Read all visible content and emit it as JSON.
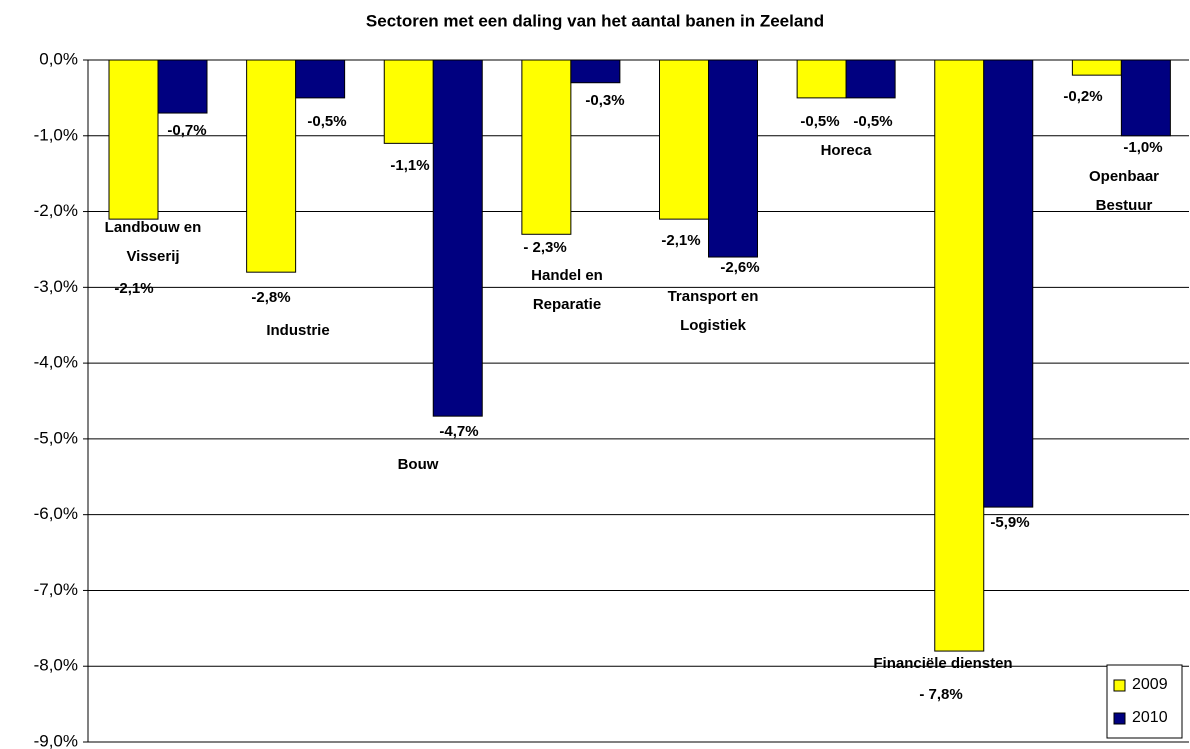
{
  "chart_data": {
    "type": "bar",
    "title": "Sectoren met een daling van het aantal banen in Zeeland",
    "categories": [
      "Landbouw en\nVisserij",
      "Industrie",
      "Bouw",
      "Handel en\nReparatie",
      "Transport en\nLogistiek",
      "Horeca",
      "Financiële diensten",
      "Openbaar\nBestuur"
    ],
    "series": [
      {
        "name": "2009",
        "color": "#ffff00",
        "values": [
          -2.1,
          -2.8,
          -1.1,
          -2.3,
          -2.1,
          -0.5,
          -7.8,
          -0.2
        ],
        "value_labels": [
          "-2,1%",
          "-2,8%",
          "-1,1%",
          "- 2,3%",
          "-2,1%",
          "-0,5%",
          "- 7,8%",
          "-0,2%"
        ]
      },
      {
        "name": "2010",
        "color": "#000080",
        "values": [
          -0.7,
          -0.5,
          -4.7,
          -0.3,
          -2.6,
          -0.5,
          -5.9,
          -1.0
        ],
        "value_labels": [
          "-0,7%",
          "-0,5%",
          "-4,7%",
          "-0,3%",
          "-2,6%",
          "-0,5%",
          "-5,9%",
          "-1,0%"
        ]
      }
    ],
    "ylim": [
      -9,
      0
    ],
    "yticks": [
      {
        "value": 0,
        "label": "0,0%"
      },
      {
        "value": -1,
        "label": "-1,0%"
      },
      {
        "value": -2,
        "label": "-2,0%"
      },
      {
        "value": -3,
        "label": "-3,0%"
      },
      {
        "value": -4,
        "label": "-4,0%"
      },
      {
        "value": -5,
        "label": "-5,0%"
      },
      {
        "value": -6,
        "label": "-6,0%"
      },
      {
        "value": -7,
        "label": "-7,0%"
      },
      {
        "value": -8,
        "label": "-8,0%"
      },
      {
        "value": -9,
        "label": "-9,0%"
      }
    ],
    "grid": true,
    "legend": "bottom-right"
  }
}
